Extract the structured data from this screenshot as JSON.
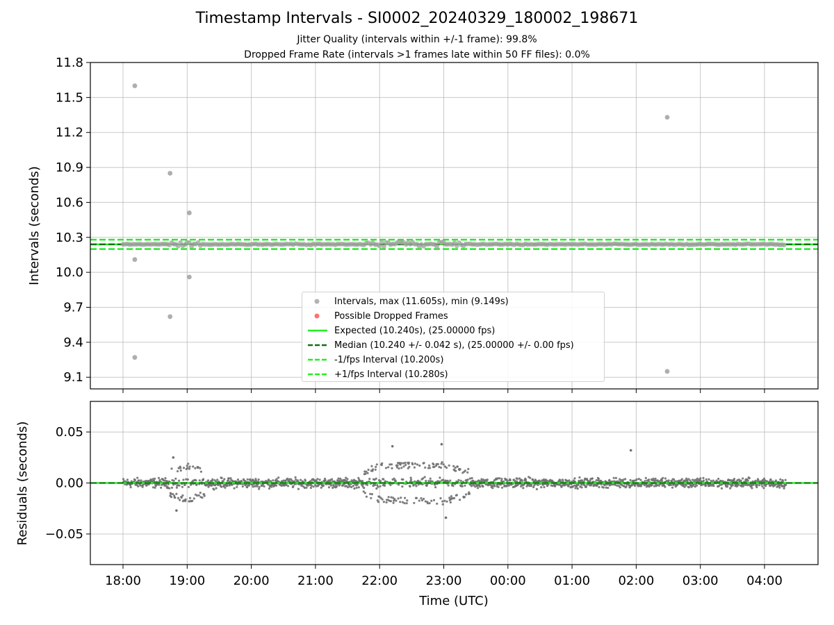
{
  "figure": {
    "title": "Timestamp Intervals - SI0002_20240329_180002_198671",
    "subtitle_1": "Jitter Quality (intervals within +/-1 frame): 99.8%",
    "subtitle_2": "Dropped Frame Rate (intervals >1 frames late within 50 FF files): 0.0%"
  },
  "colors": {
    "intervals": "#a0a0a0",
    "dropped": "#ff4d4d",
    "expected": "#22ee22",
    "median": "#107010",
    "limits": "#22ee22",
    "residuals": "#707070",
    "grid": "#b0b0b0"
  },
  "chart_data": [
    {
      "type": "scatter",
      "xlabel": "",
      "ylabel": "Intervals (seconds)",
      "x_unit": "hours since 18:00 UTC",
      "ylim": [
        9.0,
        11.8
      ],
      "yticks": [
        "9.1",
        "9.4",
        "9.7",
        "10.0",
        "10.3",
        "10.6",
        "10.9",
        "11.2",
        "11.5",
        "11.8"
      ],
      "grid": true,
      "legend_position": "lower center",
      "legend": [
        "Intervals, max (11.605s), min (9.149s)",
        "Possible Dropped Frames",
        "Expected (10.240s), (25.00000 fps)",
        "Median (10.240 +/- 0.042 s), (25.00000 +/- 0.00 fps)",
        "-1/fps Interval (10.200s)",
        "+1/fps Interval (10.280s)"
      ],
      "outliers": [
        {
          "x": "18:11",
          "y": 11.6
        },
        {
          "x": "18:11",
          "y": 10.11
        },
        {
          "x": "18:11",
          "y": 9.27
        },
        {
          "x": "18:44",
          "y": 10.85
        },
        {
          "x": "18:44",
          "y": 9.62
        },
        {
          "x": "19:02",
          "y": 10.51
        },
        {
          "x": "19:02",
          "y": 9.96
        },
        {
          "x": "02:29",
          "y": 11.33
        },
        {
          "x": "02:29",
          "y": 9.15
        }
      ],
      "expected": 10.24,
      "median": 10.24,
      "lower_limit": 10.2,
      "upper_limit": 10.28,
      "x_range": [
        "18:00",
        "04:20"
      ]
    },
    {
      "type": "scatter",
      "xlabel": "Time (UTC)",
      "ylabel": "Residuals (seconds)",
      "ylim": [
        -0.08,
        0.08
      ],
      "yticks": [
        "−0.05",
        "0.00",
        "0.05"
      ],
      "xticks": [
        "18:00",
        "19:00",
        "20:00",
        "21:00",
        "22:00",
        "23:00",
        "00:00",
        "01:00",
        "02:00",
        "03:00",
        "04:00"
      ],
      "grid": true,
      "x_range": [
        "18:00",
        "04:20"
      ],
      "zero_line": 0.0,
      "spread_profile": [
        {
          "x": "18:00",
          "amp": 0.005
        },
        {
          "x": "18:30",
          "amp": 0.007
        },
        {
          "x": "19:00",
          "amp": 0.018
        },
        {
          "x": "19:30",
          "amp": 0.007
        },
        {
          "x": "20:30",
          "amp": 0.006
        },
        {
          "x": "21:30",
          "amp": 0.006
        },
        {
          "x": "22:00",
          "amp": 0.018
        },
        {
          "x": "23:00",
          "amp": 0.02
        },
        {
          "x": "23:30",
          "amp": 0.01
        },
        {
          "x": "00:00",
          "amp": 0.006
        },
        {
          "x": "01:00",
          "amp": 0.006
        },
        {
          "x": "02:00",
          "amp": 0.008
        },
        {
          "x": "02:30",
          "amp": 0.01
        },
        {
          "x": "03:30",
          "amp": 0.007
        },
        {
          "x": "04:20",
          "amp": 0.006
        }
      ],
      "extreme_points": [
        {
          "x": "22:58",
          "y": 0.038
        },
        {
          "x": "23:02",
          "y": -0.034
        },
        {
          "x": "22:12",
          "y": 0.036
        },
        {
          "x": "18:47",
          "y": 0.025
        },
        {
          "x": "01:55",
          "y": 0.032
        },
        {
          "x": "18:50",
          "y": -0.027
        }
      ]
    }
  ]
}
